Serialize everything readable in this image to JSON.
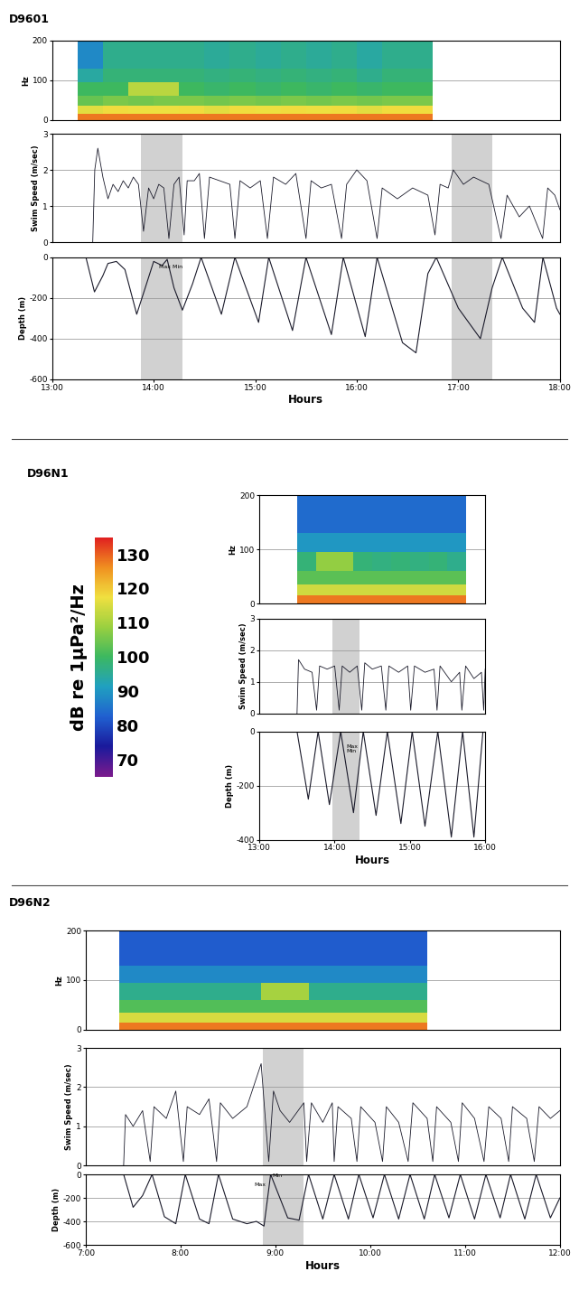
{
  "chart_data": [
    {
      "type": "panel",
      "title": "D9601",
      "xlim": [
        13,
        18
      ],
      "xticks": [
        {
          "value": 13,
          "label": "13:00"
        },
        {
          "value": 14,
          "label": "14:00"
        },
        {
          "value": 15,
          "label": "15:00"
        },
        {
          "value": 16,
          "label": "16:00"
        },
        {
          "value": 17,
          "label": "17:00"
        },
        {
          "value": 18,
          "label": "18:00"
        }
      ],
      "xlabel": "Hours",
      "shaded": [
        [
          13.87,
          14.28
        ],
        [
          16.93,
          17.33
        ]
      ],
      "spectrogram": {
        "type": "heatmap",
        "ylabel": "Hz",
        "ylim": [
          0,
          200
        ],
        "yticks": [
          0,
          100,
          200
        ],
        "grid": true,
        "tick_labels": "y",
        "time_edges": [
          13.25,
          13.5,
          13.75,
          14.0,
          14.25,
          14.5,
          14.75,
          15.0,
          15.25,
          15.5,
          15.75,
          16.0,
          16.25,
          16.5,
          16.75
        ],
        "freq_edges": [
          0,
          15,
          35,
          60,
          95,
          130,
          200
        ],
        "cells": [
          [
            128,
            128,
            128,
            128,
            128,
            128,
            128,
            128,
            128,
            128,
            128,
            128,
            128,
            128
          ],
          [
            116,
            118,
            117,
            117,
            118,
            116,
            118,
            117,
            118,
            117,
            118,
            116,
            118,
            118
          ],
          [
            104,
            106,
            105,
            106,
            106,
            105,
            106,
            105,
            106,
            105,
            106,
            105,
            106,
            106
          ],
          [
            100,
            100,
            112,
            112,
            100,
            99,
            100,
            99,
            100,
            99,
            100,
            99,
            100,
            100
          ],
          [
            94,
            98,
            98,
            98,
            98,
            97,
            98,
            97,
            98,
            97,
            98,
            96,
            98,
            98
          ],
          [
            88,
            96,
            96,
            96,
            96,
            95,
            96,
            95,
            96,
            95,
            96,
            94,
            96,
            96
          ]
        ]
      },
      "speed": {
        "type": "line",
        "ylabel": "Swim Speed (m/sec)",
        "ylim": [
          0,
          3
        ],
        "yticks": [
          0,
          1,
          2,
          3
        ],
        "grid": true,
        "tick_labels": "y",
        "x": [
          13.4,
          13.42,
          13.45,
          13.5,
          13.55,
          13.6,
          13.65,
          13.7,
          13.75,
          13.8,
          13.85,
          13.9,
          13.95,
          14.0,
          14.05,
          14.1,
          14.15,
          14.2,
          14.25,
          14.3,
          14.33,
          14.4,
          14.45,
          14.5,
          14.55,
          14.65,
          14.75,
          14.8,
          14.85,
          14.95,
          15.05,
          15.12,
          15.18,
          15.3,
          15.4,
          15.5,
          15.55,
          15.65,
          15.75,
          15.85,
          15.9,
          16.0,
          16.1,
          16.2,
          16.25,
          16.4,
          16.55,
          16.7,
          16.77,
          16.82,
          16.9,
          16.95,
          17.05,
          17.15,
          17.3,
          17.42,
          17.48,
          17.6,
          17.7,
          17.83,
          17.88,
          17.95,
          18.0
        ],
        "values": [
          0,
          2.0,
          2.6,
          1.8,
          1.2,
          1.6,
          1.4,
          1.7,
          1.5,
          1.8,
          1.6,
          0.3,
          1.5,
          1.2,
          1.6,
          1.5,
          0.1,
          1.6,
          1.8,
          0.2,
          1.7,
          1.7,
          1.9,
          0.1,
          1.8,
          1.7,
          1.6,
          0.1,
          1.7,
          1.5,
          1.7,
          0.1,
          1.8,
          1.6,
          1.9,
          0.1,
          1.7,
          1.5,
          1.6,
          0.1,
          1.6,
          2.0,
          1.7,
          0.1,
          1.5,
          1.2,
          1.5,
          1.3,
          0.2,
          1.6,
          1.5,
          2.0,
          1.6,
          1.8,
          1.6,
          0.1,
          1.3,
          0.7,
          1.0,
          0.1,
          1.5,
          1.3,
          0.9
        ]
      },
      "depth": {
        "type": "line",
        "ylabel": "Depth (m)",
        "ylim": [
          -600,
          0
        ],
        "yticks": [
          0,
          -200,
          -400,
          -600
        ],
        "grid": true,
        "x": [
          13.333,
          13.417,
          13.5,
          13.55,
          13.633,
          13.717,
          13.833,
          13.917,
          14.0,
          14.083,
          14.133,
          14.2,
          14.283,
          14.383,
          14.467,
          14.667,
          14.8,
          15.033,
          15.133,
          15.367,
          15.5,
          15.75,
          15.867,
          16.083,
          16.2,
          16.45,
          16.583,
          16.7,
          16.783,
          17.0,
          17.217,
          17.333,
          17.433,
          17.633,
          17.75,
          17.833,
          17.967,
          18.0
        ],
        "values": [
          0,
          -170,
          -90,
          -30,
          -20,
          -60,
          -280,
          -150,
          -20,
          -40,
          -10,
          -150,
          -260,
          -130,
          0,
          -280,
          0,
          -320,
          0,
          -360,
          0,
          -380,
          0,
          -390,
          0,
          -420,
          -470,
          -80,
          0,
          -250,
          -400,
          -150,
          0,
          -250,
          -320,
          0,
          -250,
          -280
        ],
        "annotations": [
          {
            "text": "Max Min",
            "x": 14.05,
            "y": -60
          }
        ]
      }
    },
    {
      "type": "panel",
      "title": "D96N1",
      "xlim": [
        13,
        16
      ],
      "xticks": [
        {
          "value": 13,
          "label": "13:00"
        },
        {
          "value": 14,
          "label": "14:00"
        },
        {
          "value": 15,
          "label": "15:00"
        },
        {
          "value": 16,
          "label": "16:00"
        }
      ],
      "xlabel": "Hours",
      "shaded": [
        [
          13.97,
          14.33
        ]
      ],
      "colorbar": {
        "label": "dB re 1µPa²/Hz",
        "range": [
          65,
          135
        ],
        "ticks": [
          70,
          80,
          90,
          100,
          110,
          120,
          130
        ]
      },
      "spectrogram": {
        "type": "heatmap",
        "ylabel": "Hz",
        "ylim": [
          0,
          200
        ],
        "yticks": [
          0,
          100,
          200
        ],
        "grid": true,
        "tick_labels": "y",
        "time_edges": [
          13.5,
          13.75,
          14.0,
          14.25,
          14.5,
          14.75,
          15.0,
          15.25,
          15.5,
          15.75
        ],
        "freq_edges": [
          0,
          15,
          35,
          60,
          95,
          130,
          200
        ],
        "cells": [
          [
            128,
            128,
            128,
            128,
            128,
            128,
            128,
            128,
            128
          ],
          [
            114,
            114,
            114,
            114,
            114,
            114,
            114,
            114,
            114
          ],
          [
            103,
            103,
            103,
            103,
            103,
            103,
            103,
            103,
            103
          ],
          [
            98,
            108,
            108,
            98,
            97,
            98,
            97,
            98,
            96
          ],
          [
            90,
            90,
            90,
            90,
            90,
            90,
            90,
            90,
            90
          ],
          [
            84,
            84,
            84,
            84,
            84,
            84,
            84,
            84,
            84
          ]
        ]
      },
      "speed": {
        "type": "line",
        "ylabel": "Swim Speed (m/sec)",
        "ylim": [
          0,
          3
        ],
        "yticks": [
          0,
          1,
          2,
          3
        ],
        "grid": true,
        "tick_labels": "y",
        "x": [
          13.5,
          13.52,
          13.6,
          13.7,
          13.76,
          13.8,
          13.9,
          14.0,
          14.06,
          14.1,
          14.2,
          14.3,
          14.36,
          14.4,
          14.5,
          14.62,
          14.68,
          14.72,
          14.85,
          14.97,
          15.01,
          15.06,
          15.2,
          15.32,
          15.36,
          15.4,
          15.55,
          15.66,
          15.69,
          15.74,
          15.85,
          15.95,
          15.98,
          16.0
        ],
        "values": [
          0,
          1.7,
          1.4,
          1.3,
          0.1,
          1.5,
          1.4,
          1.5,
          0.1,
          1.5,
          1.3,
          1.5,
          0.1,
          1.6,
          1.4,
          1.5,
          0.1,
          1.5,
          1.3,
          1.5,
          0.1,
          1.5,
          1.3,
          1.4,
          0.1,
          1.5,
          1.0,
          1.3,
          0.1,
          1.5,
          1.1,
          1.3,
          0.1,
          1.4
        ]
      },
      "depth": {
        "type": "line",
        "ylabel": "Depth (m)",
        "ylim": [
          -400,
          0
        ],
        "yticks": [
          0,
          -200,
          -400
        ],
        "grid": true,
        "x": [
          13.5,
          13.65,
          13.78,
          13.93,
          14.08,
          14.25,
          14.38,
          14.55,
          14.7,
          14.88,
          15.03,
          15.2,
          15.37,
          15.55,
          15.7,
          15.85,
          15.97
        ],
        "values": [
          0,
          -250,
          0,
          -270,
          0,
          -300,
          0,
          -310,
          0,
          -340,
          0,
          -350,
          0,
          -390,
          0,
          -390,
          0
        ],
        "annotations": [
          {
            "text": "Max\nMin",
            "x": 14.15,
            "y": -80
          }
        ]
      }
    },
    {
      "type": "panel",
      "title": "D96N2",
      "xlim": [
        7,
        12
      ],
      "xticks": [
        {
          "value": 7,
          "label": "7:00"
        },
        {
          "value": 8,
          "label": "8:00"
        },
        {
          "value": 9,
          "label": "9:00"
        },
        {
          "value": 10,
          "label": "10:00"
        },
        {
          "value": 11,
          "label": "11:00"
        },
        {
          "value": 12,
          "label": "12:00"
        }
      ],
      "xlabel": "Hours",
      "shaded": [
        [
          8.87,
          9.3
        ]
      ],
      "spectrogram": {
        "type": "heatmap",
        "ylabel": "Hz",
        "ylim": [
          0,
          200
        ],
        "yticks": [
          0,
          100,
          200
        ],
        "grid": true,
        "tick_labels": "y",
        "time_edges": [
          7.35,
          7.6,
          7.85,
          8.1,
          8.35,
          8.6,
          8.85,
          9.1,
          9.35,
          9.6,
          9.85,
          10.1,
          10.35,
          10.6
        ],
        "freq_edges": [
          0,
          15,
          35,
          60,
          95,
          130,
          200
        ],
        "cells": [
          [
            128,
            128,
            128,
            128,
            128,
            128,
            128,
            128,
            128,
            128,
            128,
            128,
            128
          ],
          [
            115,
            115,
            115,
            115,
            115,
            115,
            115,
            115,
            115,
            115,
            115,
            115,
            115
          ],
          [
            102,
            102,
            102,
            102,
            102,
            102,
            102,
            102,
            102,
            102,
            102,
            102,
            102
          ],
          [
            96,
            96,
            96,
            96,
            96,
            96,
            110,
            110,
            96,
            96,
            96,
            96,
            96
          ],
          [
            88,
            88,
            88,
            88,
            88,
            88,
            88,
            88,
            88,
            88,
            88,
            88,
            88
          ],
          [
            82,
            82,
            82,
            82,
            82,
            82,
            82,
            82,
            82,
            82,
            82,
            82,
            82
          ]
        ]
      },
      "speed": {
        "type": "line",
        "ylabel": "Swim Speed (m/sec)",
        "ylim": [
          0,
          3
        ],
        "yticks": [
          0,
          1,
          2,
          3
        ],
        "grid": true,
        "tick_labels": "y",
        "x": [
          7.4,
          7.42,
          7.5,
          7.6,
          7.68,
          7.72,
          7.85,
          7.95,
          8.03,
          8.07,
          8.2,
          8.3,
          8.38,
          8.42,
          8.55,
          8.7,
          8.85,
          8.9,
          8.93,
          8.98,
          9.05,
          9.15,
          9.3,
          9.33,
          9.38,
          9.5,
          9.6,
          9.62,
          9.66,
          9.8,
          9.86,
          9.9,
          10.05,
          10.13,
          10.17,
          10.3,
          10.4,
          10.45,
          10.6,
          10.66,
          10.7,
          10.85,
          10.93,
          10.97,
          11.1,
          11.2,
          11.25,
          11.38,
          11.46,
          11.5,
          11.65,
          11.73,
          11.78,
          11.9,
          12.0
        ],
        "values": [
          0,
          1.3,
          1.0,
          1.4,
          0.1,
          1.5,
          1.2,
          1.9,
          0.1,
          1.5,
          1.3,
          1.7,
          0.1,
          1.6,
          1.2,
          1.5,
          2.6,
          1.0,
          0.1,
          1.9,
          1.4,
          1.1,
          1.6,
          0.1,
          1.6,
          1.1,
          1.6,
          0.1,
          1.5,
          1.2,
          0.1,
          1.5,
          1.1,
          0.1,
          1.5,
          1.1,
          0.1,
          1.6,
          1.2,
          0.1,
          1.5,
          1.1,
          0.1,
          1.6,
          1.2,
          0.1,
          1.5,
          1.2,
          0.1,
          1.5,
          1.2,
          0.1,
          1.5,
          1.2,
          1.4
        ]
      },
      "depth": {
        "type": "line",
        "ylabel": "Depth (m)",
        "ylim": [
          -600,
          0
        ],
        "yticks": [
          0,
          -200,
          -400,
          -600
        ],
        "grid": true,
        "x": [
          7.4,
          7.5,
          7.6,
          7.7,
          7.83,
          7.95,
          8.05,
          8.2,
          8.3,
          8.4,
          8.55,
          8.7,
          8.8,
          8.88,
          8.95,
          9.13,
          9.25,
          9.35,
          9.5,
          9.62,
          9.77,
          9.88,
          10.03,
          10.15,
          10.3,
          10.42,
          10.57,
          10.68,
          10.83,
          10.95,
          11.1,
          11.22,
          11.37,
          11.48,
          11.63,
          11.75,
          11.9,
          12.0
        ],
        "values": [
          0,
          -280,
          -180,
          0,
          -360,
          -420,
          0,
          -380,
          -420,
          0,
          -380,
          -420,
          -400,
          -440,
          0,
          -370,
          -390,
          0,
          -380,
          0,
          -380,
          0,
          -370,
          0,
          -380,
          0,
          -380,
          0,
          -370,
          0,
          -380,
          0,
          -370,
          0,
          -380,
          0,
          -370,
          -200
        ],
        "annotations": [
          {
            "text": "Max",
            "x": 8.78,
            "y": -110
          },
          {
            "text": "Min",
            "x": 8.97,
            "y": -30
          }
        ]
      }
    }
  ]
}
